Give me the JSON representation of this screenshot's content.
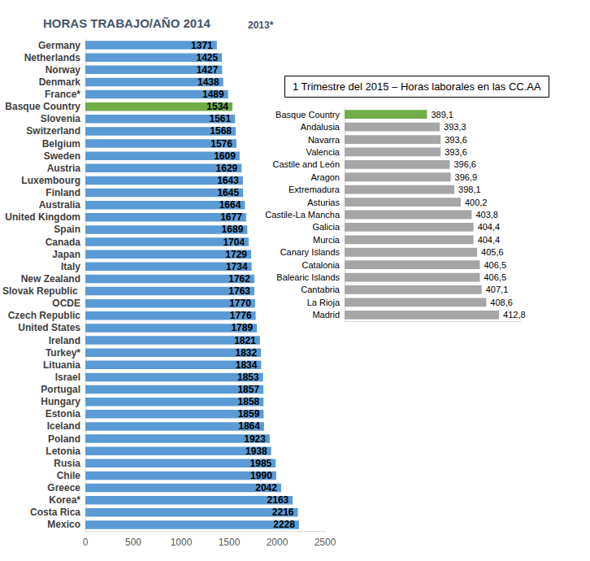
{
  "chart_data": [
    {
      "type": "bar",
      "title": "HORAS TRABAJO/AÑO 2014",
      "subtitle": "2013*",
      "orientation": "horizontal",
      "categories": [
        "Germany",
        "Netherlands",
        "Norway",
        "Denmark",
        "France*",
        "Basque Country",
        "Slovenia",
        "Switzerland",
        "Belgium",
        "Sweden",
        "Austria",
        "Luxembourg",
        "Finland",
        "Australia",
        "United Kingdom",
        "Spain",
        "Canada",
        "Japan",
        "Italy",
        "New Zealand",
        "Slovak Republic ",
        "OCDE",
        "Czech Republic",
        "United States",
        "Ireland",
        "Turkey*",
        "Lituania",
        "Israel",
        "Portugal",
        "Hungary",
        "Estonia",
        "Iceland",
        "Poland",
        "Letonia",
        "Rusia",
        "Chile",
        "Greece",
        "Korea*",
        "Costa Rica",
        "Mexico"
      ],
      "values": [
        1371,
        1425,
        1427,
        1438,
        1489,
        1534,
        1561,
        1568,
        1576,
        1609,
        1629,
        1643,
        1645,
        1664,
        1677,
        1689,
        1704,
        1729,
        1734,
        1762,
        1763,
        1770,
        1776,
        1789,
        1821,
        1832,
        1834,
        1853,
        1857,
        1858,
        1859,
        1864,
        1923,
        1938,
        1985,
        1990,
        2042,
        2163,
        2216,
        2228
      ],
      "colors": [
        "#5b9bd5",
        "#5b9bd5",
        "#5b9bd5",
        "#5b9bd5",
        "#5b9bd5",
        "#70ad47",
        "#5b9bd5",
        "#5b9bd5",
        "#5b9bd5",
        "#5b9bd5",
        "#5b9bd5",
        "#5b9bd5",
        "#5b9bd5",
        "#5b9bd5",
        "#5b9bd5",
        "#5b9bd5",
        "#5b9bd5",
        "#5b9bd5",
        "#5b9bd5",
        "#5b9bd5",
        "#5b9bd5",
        "#5b9bd5",
        "#5b9bd5",
        "#5b9bd5",
        "#5b9bd5",
        "#5b9bd5",
        "#5b9bd5",
        "#5b9bd5",
        "#5b9bd5",
        "#5b9bd5",
        "#5b9bd5",
        "#5b9bd5",
        "#5b9bd5",
        "#5b9bd5",
        "#5b9bd5",
        "#5b9bd5",
        "#5b9bd5",
        "#5b9bd5",
        "#5b9bd5",
        "#5b9bd5"
      ],
      "xlim": [
        0,
        2500
      ],
      "xticks": [
        0,
        500,
        1000,
        1500,
        2000,
        2500
      ],
      "grid": false,
      "data_labels": true
    },
    {
      "type": "bar",
      "title": "1 Trimestre del 2015 – Horas laborales en las CC.AA",
      "orientation": "horizontal",
      "categories": [
        "Basque Country",
        "Andalusia",
        "Navarra",
        "Valencia",
        "Castile and León",
        "Aragon",
        "Extremadura",
        "Asturias",
        "Castile-La Mancha",
        "Galicia",
        "Murcia",
        "Canary Islands",
        "Catalonia",
        "Balearic Islands",
        "Cantabria",
        "La Rioja",
        "Madrid"
      ],
      "values": [
        389.1,
        393.3,
        393.6,
        393.6,
        396.6,
        396.9,
        398.1,
        400.2,
        403.8,
        404.4,
        404.4,
        405.6,
        406.5,
        406.5,
        407.1,
        408.6,
        412.8
      ],
      "value_labels": [
        "389,1",
        "393,3",
        "393,6",
        "393,6",
        "396,6",
        "396,9",
        "398,1",
        "400,2",
        "403,8",
        "404,4",
        "404,4",
        "405,6",
        "406,5",
        "406,5",
        "407,1",
        "408,6",
        "412,8"
      ],
      "colors": [
        "#70ad47",
        "#a6a6a6",
        "#a6a6a6",
        "#a6a6a6",
        "#a6a6a6",
        "#a6a6a6",
        "#a6a6a6",
        "#a6a6a6",
        "#a6a6a6",
        "#a6a6a6",
        "#a6a6a6",
        "#a6a6a6",
        "#a6a6a6",
        "#a6a6a6",
        "#a6a6a6",
        "#a6a6a6",
        "#a6a6a6"
      ],
      "xlim": [
        362,
        420
      ],
      "tick_labels": "y",
      "grid": false,
      "data_labels": true
    }
  ]
}
